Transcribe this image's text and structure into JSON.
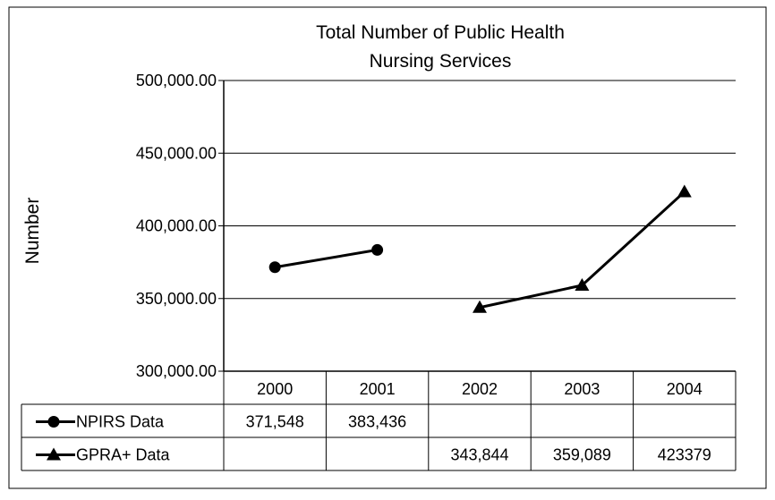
{
  "chart_data": {
    "type": "line",
    "title_lines": [
      "Total Number of Public Health",
      "Nursing Services"
    ],
    "ylabel": "Number",
    "xlabel": "",
    "ylim": [
      300000,
      500000
    ],
    "yticks": [
      "500,000.00",
      "450,000.00",
      "400,000.00",
      "350,000.00",
      "300,000.00"
    ],
    "ytick_values": [
      500000,
      450000,
      400000,
      350000,
      300000
    ],
    "categories": [
      "2000",
      "2001",
      "2002",
      "2003",
      "2004"
    ],
    "grid": true,
    "legend": "data-table",
    "series": [
      {
        "name": "NPIRS Data",
        "marker": "circle",
        "values": [
          371548,
          383436,
          null,
          null,
          null
        ],
        "labels": [
          "371,548",
          "383,436",
          "",
          "",
          ""
        ]
      },
      {
        "name": "GPRA+ Data",
        "marker": "triangle",
        "values": [
          null,
          null,
          343844,
          359089,
          423379
        ],
        "labels": [
          "",
          "",
          "343,844",
          "359,089",
          "423379"
        ]
      }
    ]
  }
}
